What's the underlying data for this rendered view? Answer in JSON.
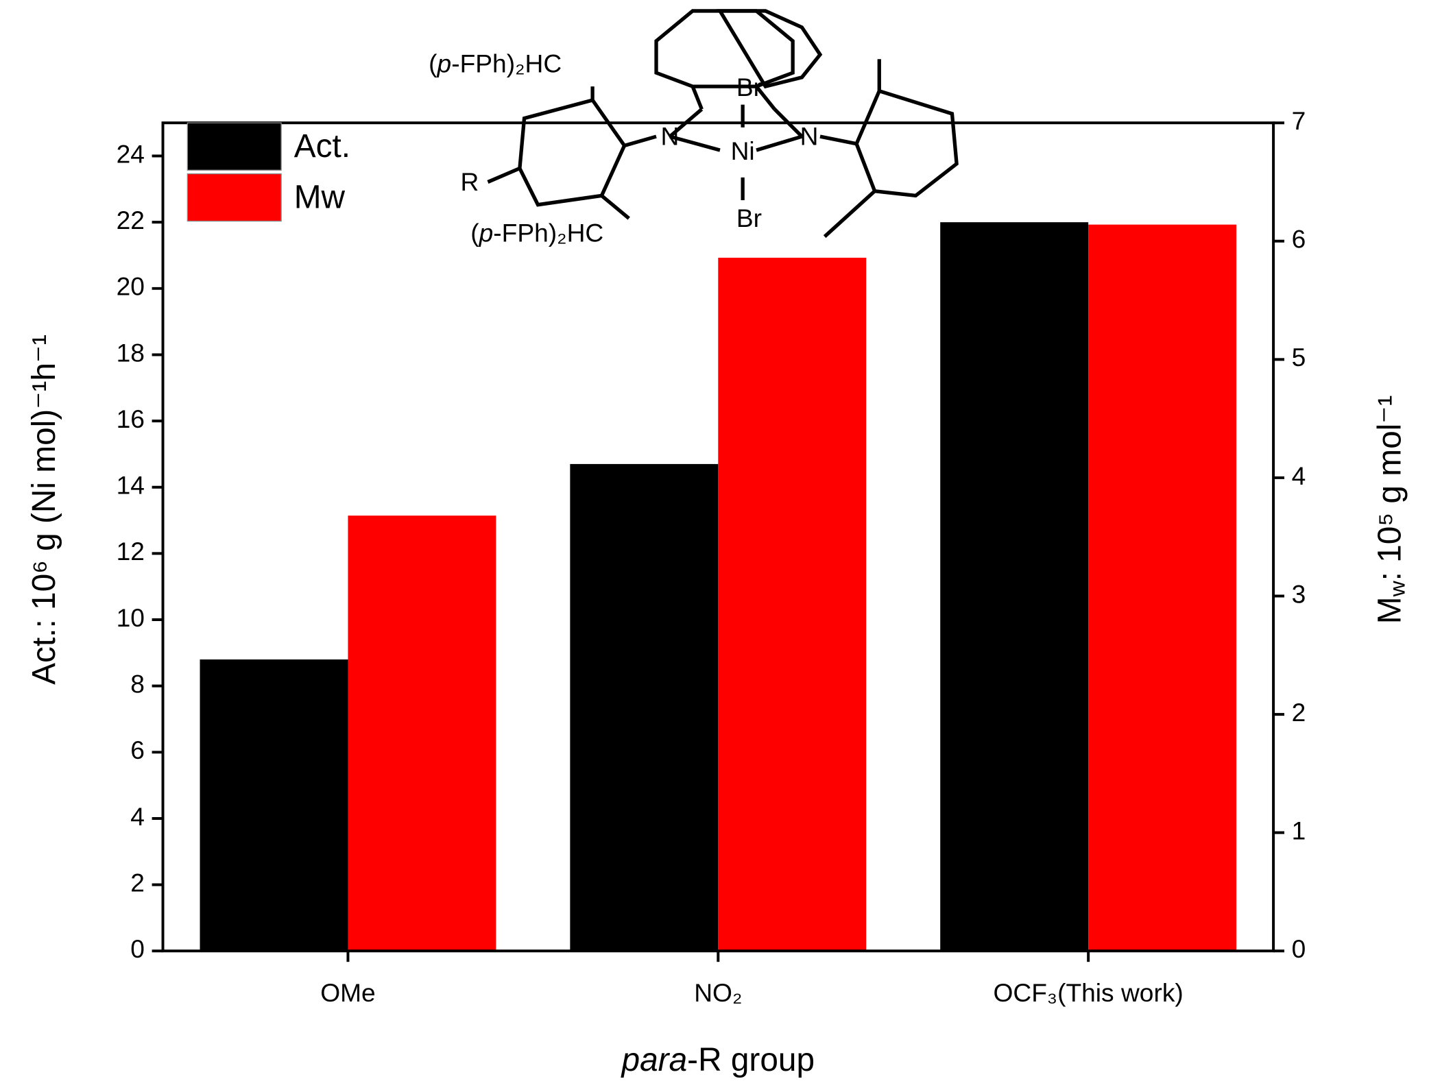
{
  "chart_data": {
    "type": "bar",
    "categories": [
      "OMe",
      "NO₂",
      "OCF₃(This work)"
    ],
    "series": [
      {
        "name": "Act.",
        "color": "#000000",
        "values": [
          8.8,
          14.7,
          22.0
        ]
      },
      {
        "name": "Mw",
        "color": "#ff0000",
        "axis": "y2",
        "values": [
          3.68,
          5.86,
          6.14
        ]
      }
    ],
    "ylim": [
      0,
      25
    ],
    "yticks": [
      0,
      2,
      4,
      6,
      8,
      10,
      12,
      14,
      16,
      18,
      20,
      22,
      24
    ],
    "y2lim": [
      0,
      7
    ],
    "y2ticks": [
      0,
      1,
      2,
      3,
      4,
      5,
      6,
      7
    ],
    "ylabel": "Act.: 10⁶ g (Ni mol)⁻¹h⁻¹",
    "y2label": [
      "M",
      "w",
      ": 10⁵ g mol⁻¹"
    ],
    "xlabel": [
      "para",
      "-R group"
    ],
    "legend": "upper left",
    "structure": {
      "substituent_top": [
        "(",
        "p",
        "-FPh)₂HC"
      ],
      "substituent_bottom": [
        "(",
        "p",
        "-FPh)₂HC"
      ],
      "r": "R",
      "n_left": "N",
      "n_right": "N",
      "metal": "Ni",
      "br_top": "Br",
      "br_bottom": "Br"
    }
  }
}
